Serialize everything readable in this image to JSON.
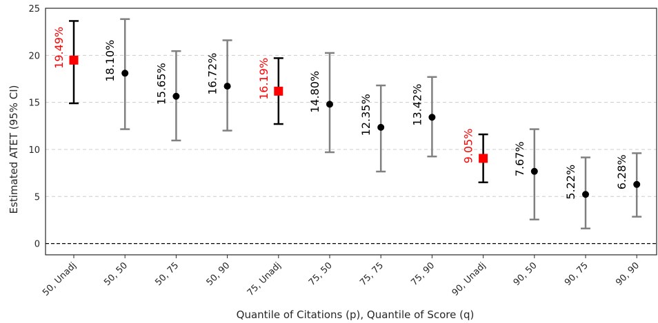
{
  "chart_data": {
    "type": "scatter",
    "title": "",
    "xlabel": "Quantile of Citations (p), Quantile of Score (q)",
    "ylabel": "Estimated ATET (95% CI)",
    "ylim": [
      -1.2,
      25
    ],
    "yticks": [
      0,
      5,
      10,
      15,
      20,
      25
    ],
    "grid": "horizontal dashed",
    "reference_line": 0,
    "categories": [
      "50, Unadj",
      "50, 50",
      "50, 75",
      "50, 90",
      "75, Unadj",
      "75, 50",
      "75, 75",
      "75, 90",
      "90, Unadj",
      "90, 50",
      "90, 75",
      "90, 90"
    ],
    "points": [
      {
        "category": "50, Unadj",
        "estimate": 19.49,
        "ci_low": 14.9,
        "ci_high": 23.65,
        "label": "19.49%",
        "unadjusted": true
      },
      {
        "category": "50, 50",
        "estimate": 18.1,
        "ci_low": 12.15,
        "ci_high": 23.85,
        "label": "18.10%",
        "unadjusted": false
      },
      {
        "category": "50, 75",
        "estimate": 15.65,
        "ci_low": 10.95,
        "ci_high": 20.45,
        "label": "15.65%",
        "unadjusted": false
      },
      {
        "category": "50, 90",
        "estimate": 16.72,
        "ci_low": 12.0,
        "ci_high": 21.6,
        "label": "16.72%",
        "unadjusted": false
      },
      {
        "category": "75, Unadj",
        "estimate": 16.19,
        "ci_low": 12.7,
        "ci_high": 19.7,
        "label": "16.19%",
        "unadjusted": true
      },
      {
        "category": "75, 50",
        "estimate": 14.8,
        "ci_low": 9.7,
        "ci_high": 20.25,
        "label": "14.80%",
        "unadjusted": false
      },
      {
        "category": "75, 75",
        "estimate": 12.35,
        "ci_low": 7.65,
        "ci_high": 16.8,
        "label": "12.35%",
        "unadjusted": false
      },
      {
        "category": "75, 90",
        "estimate": 13.42,
        "ci_low": 9.25,
        "ci_high": 17.7,
        "label": "13.42%",
        "unadjusted": false
      },
      {
        "category": "90, Unadj",
        "estimate": 9.05,
        "ci_low": 6.5,
        "ci_high": 11.6,
        "label": "9.05%",
        "unadjusted": true
      },
      {
        "category": "90, 50",
        "estimate": 7.67,
        "ci_low": 2.55,
        "ci_high": 12.15,
        "label": "7.67%",
        "unadjusted": false
      },
      {
        "category": "90, 75",
        "estimate": 5.22,
        "ci_low": 1.6,
        "ci_high": 9.15,
        "label": "5.22%",
        "unadjusted": false
      },
      {
        "category": "90, 90",
        "estimate": 6.28,
        "ci_low": 2.85,
        "ci_high": 9.6,
        "label": "6.28%",
        "unadjusted": false
      }
    ],
    "colors": {
      "unadjusted_marker": "#ff0000",
      "unadjusted_bar": "#000000",
      "unadjusted_label": "#ff0000",
      "adjusted_marker": "#000000",
      "adjusted_bar": "#808080",
      "adjusted_label": "#000000",
      "grid": "#cccccc",
      "zero_line": "#000000"
    }
  }
}
